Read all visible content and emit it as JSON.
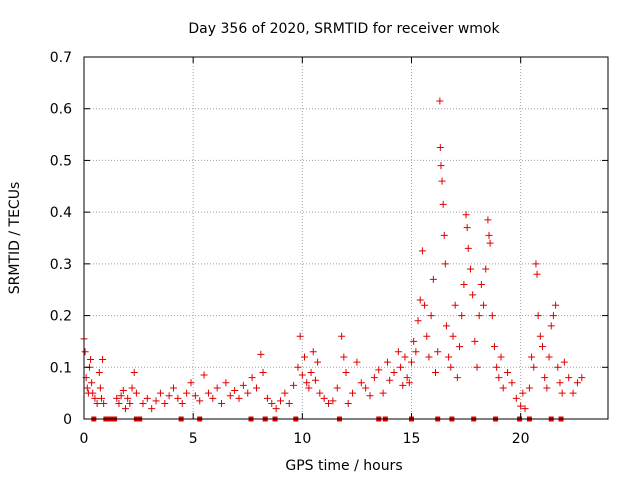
{
  "chart_data": {
    "type": "scatter",
    "title": "Day 356 of 2020, SRMTID for receiver wmok",
    "xlabel": "GPS time / hours",
    "ylabel": "SRMTID / TECUs",
    "xlim": [
      0,
      24
    ],
    "ylim": [
      0,
      0.7
    ],
    "x_ticks": [
      0,
      5,
      10,
      15,
      20
    ],
    "x_tick_labels": [
      "0",
      "5",
      "10",
      "15",
      "20"
    ],
    "y_ticks": [
      0,
      0.1,
      0.2,
      0.3,
      0.4,
      0.5,
      0.6,
      0.7
    ],
    "y_tick_labels": [
      "0",
      "0.1",
      "0.2",
      "0.3",
      "0.4",
      "0.5",
      "0.6",
      "0.7"
    ],
    "grid": true,
    "marker": "plus",
    "color": "#e00000",
    "series": [
      {
        "name": "SRMTID",
        "points": [
          [
            0.0,
            0.155
          ],
          [
            0.05,
            0.13
          ],
          [
            0.1,
            0.08
          ],
          [
            0.15,
            0.06
          ],
          [
            0.2,
            0.05
          ],
          [
            0.25,
            0.1
          ],
          [
            0.3,
            0.115
          ],
          [
            0.35,
            0.07
          ],
          [
            0.4,
            0.05
          ],
          [
            0.5,
            0.04
          ],
          [
            0.6,
            0.03
          ],
          [
            0.7,
            0.09
          ],
          [
            0.75,
            0.06
          ],
          [
            0.8,
            0.04
          ],
          [
            0.85,
            0.115
          ],
          [
            0.9,
            0.03
          ],
          [
            1.5,
            0.04
          ],
          [
            1.6,
            0.03
          ],
          [
            1.7,
            0.045
          ],
          [
            1.8,
            0.055
          ],
          [
            1.9,
            0.02
          ],
          [
            2.0,
            0.04
          ],
          [
            2.1,
            0.03
          ],
          [
            2.2,
            0.06
          ],
          [
            2.3,
            0.09
          ],
          [
            2.4,
            0.05
          ],
          [
            2.7,
            0.03
          ],
          [
            2.9,
            0.04
          ],
          [
            3.1,
            0.02
          ],
          [
            3.3,
            0.035
          ],
          [
            3.5,
            0.05
          ],
          [
            3.7,
            0.03
          ],
          [
            3.9,
            0.045
          ],
          [
            4.1,
            0.06
          ],
          [
            4.3,
            0.04
          ],
          [
            4.5,
            0.03
          ],
          [
            4.7,
            0.05
          ],
          [
            4.9,
            0.07
          ],
          [
            5.1,
            0.045
          ],
          [
            5.3,
            0.035
          ],
          [
            5.5,
            0.085
          ],
          [
            5.7,
            0.05
          ],
          [
            5.9,
            0.04
          ],
          [
            6.1,
            0.06
          ],
          [
            6.3,
            0.03
          ],
          [
            6.5,
            0.07
          ],
          [
            6.7,
            0.045
          ],
          [
            6.9,
            0.055
          ],
          [
            7.1,
            0.04
          ],
          [
            7.3,
            0.065
          ],
          [
            7.5,
            0.05
          ],
          [
            7.7,
            0.08
          ],
          [
            7.9,
            0.06
          ],
          [
            8.1,
            0.125
          ],
          [
            8.2,
            0.09
          ],
          [
            8.4,
            0.04
          ],
          [
            8.6,
            0.03
          ],
          [
            8.8,
            0.02
          ],
          [
            9.0,
            0.035
          ],
          [
            9.2,
            0.05
          ],
          [
            9.4,
            0.03
          ],
          [
            9.6,
            0.065
          ],
          [
            9.8,
            0.1
          ],
          [
            9.9,
            0.16
          ],
          [
            10.0,
            0.085
          ],
          [
            10.1,
            0.12
          ],
          [
            10.2,
            0.07
          ],
          [
            10.3,
            0.06
          ],
          [
            10.4,
            0.09
          ],
          [
            10.5,
            0.13
          ],
          [
            10.6,
            0.075
          ],
          [
            10.7,
            0.11
          ],
          [
            10.8,
            0.05
          ],
          [
            11.0,
            0.04
          ],
          [
            11.2,
            0.03
          ],
          [
            11.4,
            0.035
          ],
          [
            11.6,
            0.06
          ],
          [
            11.8,
            0.16
          ],
          [
            11.9,
            0.12
          ],
          [
            12.0,
            0.09
          ],
          [
            12.1,
            0.03
          ],
          [
            12.3,
            0.05
          ],
          [
            12.5,
            0.11
          ],
          [
            12.7,
            0.07
          ],
          [
            12.9,
            0.06
          ],
          [
            13.1,
            0.045
          ],
          [
            13.3,
            0.08
          ],
          [
            13.5,
            0.095
          ],
          [
            13.7,
            0.05
          ],
          [
            13.9,
            0.11
          ],
          [
            14.0,
            0.075
          ],
          [
            14.2,
            0.09
          ],
          [
            14.4,
            0.13
          ],
          [
            14.5,
            0.1
          ],
          [
            14.6,
            0.065
          ],
          [
            14.7,
            0.12
          ],
          [
            14.8,
            0.08
          ],
          [
            14.9,
            0.07
          ],
          [
            15.0,
            0.11
          ],
          [
            15.1,
            0.15
          ],
          [
            15.2,
            0.13
          ],
          [
            15.3,
            0.19
          ],
          [
            15.4,
            0.23
          ],
          [
            15.5,
            0.325
          ],
          [
            15.6,
            0.22
          ],
          [
            15.7,
            0.16
          ],
          [
            15.8,
            0.12
          ],
          [
            15.9,
            0.2
          ],
          [
            16.0,
            0.27
          ],
          [
            16.1,
            0.09
          ],
          [
            16.2,
            0.13
          ],
          [
            16.3,
            0.615
          ],
          [
            16.32,
            0.525
          ],
          [
            16.35,
            0.49
          ],
          [
            16.4,
            0.46
          ],
          [
            16.45,
            0.415
          ],
          [
            16.5,
            0.355
          ],
          [
            16.55,
            0.3
          ],
          [
            16.6,
            0.18
          ],
          [
            16.7,
            0.12
          ],
          [
            16.8,
            0.1
          ],
          [
            16.9,
            0.16
          ],
          [
            17.0,
            0.22
          ],
          [
            17.1,
            0.08
          ],
          [
            17.2,
            0.14
          ],
          [
            17.3,
            0.2
          ],
          [
            17.4,
            0.26
          ],
          [
            17.5,
            0.395
          ],
          [
            17.55,
            0.37
          ],
          [
            17.6,
            0.33
          ],
          [
            17.7,
            0.29
          ],
          [
            17.8,
            0.24
          ],
          [
            17.9,
            0.15
          ],
          [
            18.0,
            0.1
          ],
          [
            18.1,
            0.2
          ],
          [
            18.2,
            0.26
          ],
          [
            18.3,
            0.22
          ],
          [
            18.4,
            0.29
          ],
          [
            18.5,
            0.385
          ],
          [
            18.55,
            0.355
          ],
          [
            18.6,
            0.34
          ],
          [
            18.7,
            0.2
          ],
          [
            18.8,
            0.14
          ],
          [
            18.9,
            0.1
          ],
          [
            19.0,
            0.08
          ],
          [
            19.1,
            0.12
          ],
          [
            19.2,
            0.06
          ],
          [
            19.4,
            0.09
          ],
          [
            19.6,
            0.07
          ],
          [
            19.8,
            0.04
          ],
          [
            20.0,
            0.025
          ],
          [
            20.1,
            0.05
          ],
          [
            20.2,
            0.02
          ],
          [
            20.4,
            0.06
          ],
          [
            20.5,
            0.12
          ],
          [
            20.6,
            0.1
          ],
          [
            20.7,
            0.3
          ],
          [
            20.75,
            0.28
          ],
          [
            20.8,
            0.2
          ],
          [
            20.9,
            0.16
          ],
          [
            21.0,
            0.14
          ],
          [
            21.1,
            0.08
          ],
          [
            21.2,
            0.06
          ],
          [
            21.3,
            0.12
          ],
          [
            21.4,
            0.18
          ],
          [
            21.5,
            0.2
          ],
          [
            21.6,
            0.22
          ],
          [
            21.7,
            0.1
          ],
          [
            21.8,
            0.07
          ],
          [
            21.9,
            0.05
          ],
          [
            22.0,
            0.11
          ],
          [
            22.2,
            0.08
          ],
          [
            22.4,
            0.05
          ],
          [
            22.6,
            0.07
          ],
          [
            22.8,
            0.08
          ]
        ]
      }
    ],
    "gap_markers_x": [
      0.45,
      1.0,
      1.2,
      1.4,
      2.4,
      2.55,
      4.45,
      5.3,
      7.65,
      8.3,
      8.75,
      9.7,
      11.7,
      13.5,
      13.8,
      15.0,
      16.2,
      16.85,
      17.85,
      18.85,
      19.95,
      20.4,
      21.4,
      21.85
    ]
  }
}
